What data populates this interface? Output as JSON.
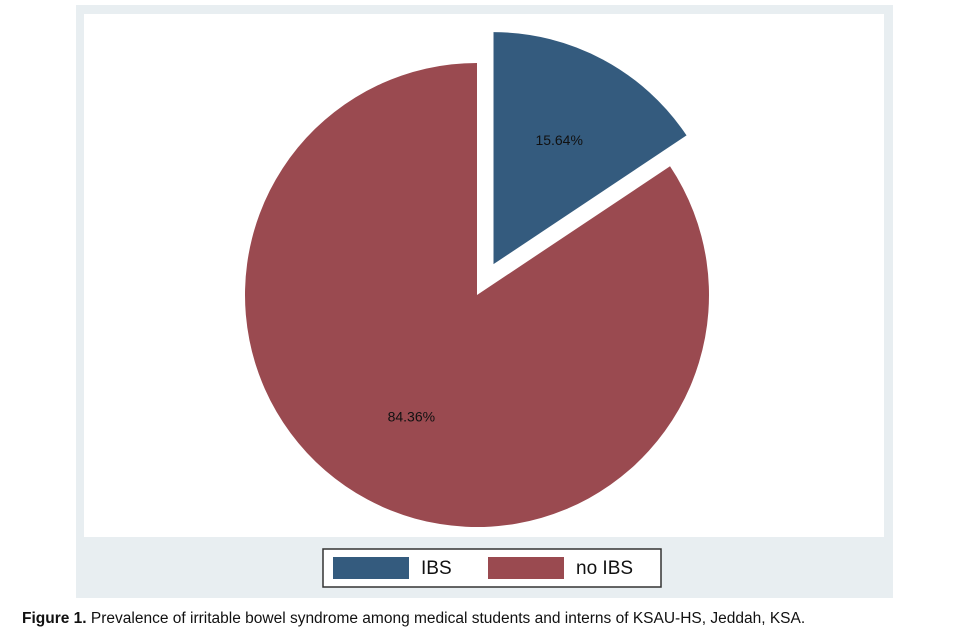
{
  "chart_data": {
    "type": "pie",
    "categories": [
      "IBS",
      "no IBS"
    ],
    "values": [
      15.64,
      84.36
    ],
    "value_labels": [
      "15.64%",
      "84.36%"
    ],
    "colors": [
      "#345b7e",
      "#9a4a50"
    ],
    "explode": [
      true,
      false
    ]
  },
  "caption": {
    "label": "Figure 1.",
    "text": "Prevalence of irritable bowel syndrome among medical students and interns of KSAU-HS, Jeddah, KSA."
  }
}
